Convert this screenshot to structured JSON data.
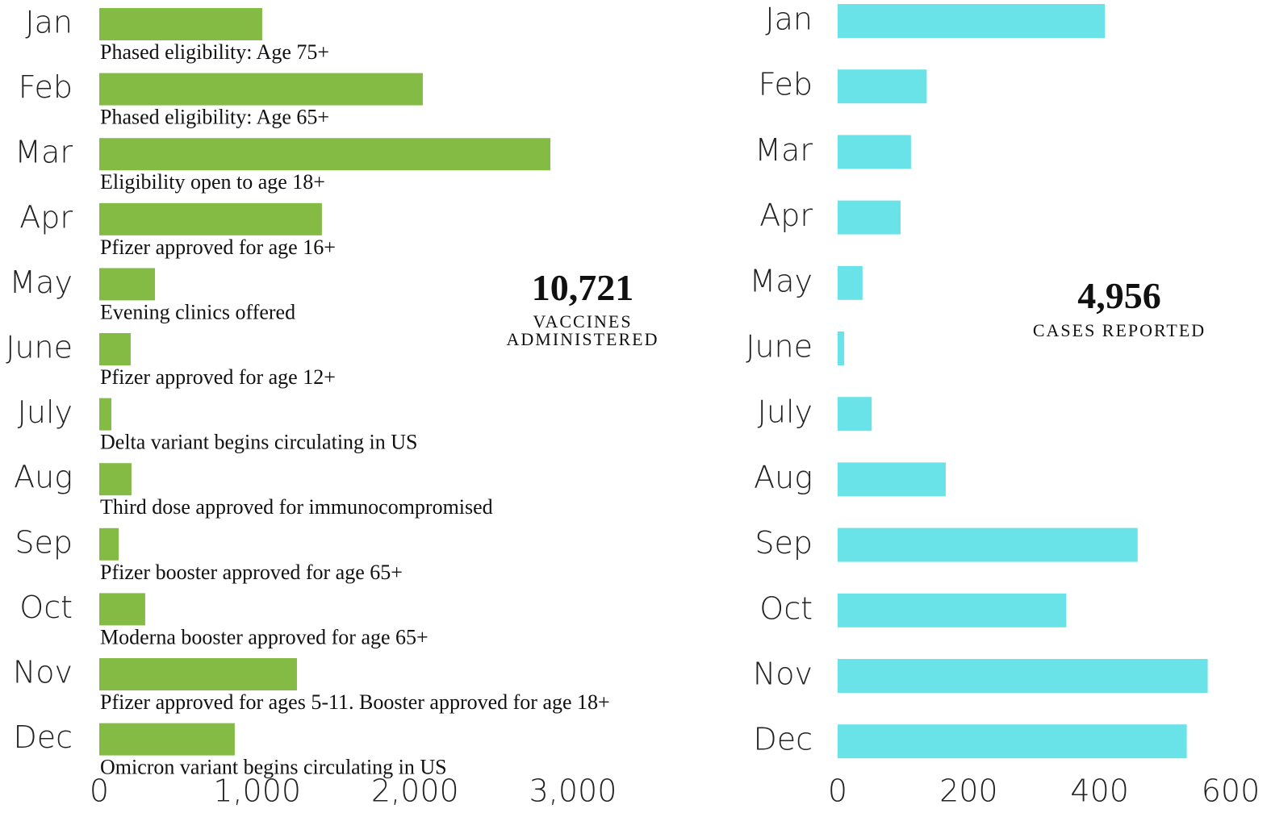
{
  "chart_data": [
    {
      "type": "bar",
      "orientation": "horizontal",
      "categories": [
        "Jan",
        "Feb",
        "Mar",
        "Apr",
        "May",
        "June",
        "July",
        "Aug",
        "Sep",
        "Oct",
        "Nov",
        "Dec"
      ],
      "values": [
        1032,
        2049,
        2857,
        1410,
        353,
        199,
        77,
        204,
        123,
        291,
        1252,
        858
      ],
      "annotations": [
        "Phased eligibility: Age 75+",
        "Phased eligibility: Age 65+",
        "Eligibility open to age 18+",
        "Pfizer approved for age 16+",
        "Evening clinics offered",
        "Pfizer approved for age 12+",
        "Delta variant begins circulating in US",
        "Third dose approved for immunocompromised",
        "Pfizer booster approved for age 65+",
        "Moderna booster approved for age 65+",
        "Pfizer approved for ages 5-11. Booster approved for age 18+",
        "Omicron variant begins circulating in US"
      ],
      "color": "#84bb44",
      "xlim": [
        0,
        3000
      ],
      "xticks": [
        0,
        {
          "value": 1000,
          "label": "1,000"
        },
        {
          "value": 2000,
          "label": "2,000"
        },
        {
          "value": 3000,
          "label": "3,000"
        }
      ],
      "total": "10,721",
      "total_label": "VACCINES ADMINISTERED"
    },
    {
      "type": "bar",
      "orientation": "horizontal",
      "categories": [
        "Jan",
        "Feb",
        "Mar",
        "Apr",
        "May",
        "June",
        "July",
        "Aug",
        "Sep",
        "Oct",
        "Nov",
        "Dec"
      ],
      "values": [
        408,
        136,
        112,
        96,
        38,
        10,
        52,
        165,
        458,
        349,
        565,
        533
      ],
      "color": "#6ae3e8",
      "xlim": [
        0,
        600
      ],
      "xticks": [
        0,
        200,
        400,
        600
      ],
      "total": "4,956",
      "total_label": "CASES REPORTED"
    }
  ]
}
